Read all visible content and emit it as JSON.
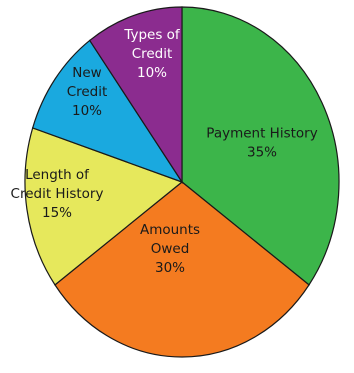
{
  "chart_data": {
    "type": "pie",
    "title": "",
    "slices": [
      {
        "label": "Payment History",
        "value": 35,
        "value_label": "35%",
        "color": "#3cb54a",
        "label_lines": [
          "Payment History",
          "35%"
        ]
      },
      {
        "label": "Amounts Owed",
        "value": 30,
        "value_label": "30%",
        "color": "#f47b20",
        "label_lines": [
          "Amounts",
          "Owed",
          "30%"
        ]
      },
      {
        "label": "Length of Credit History",
        "value": 15,
        "value_label": "15%",
        "color": "#e6e85c",
        "label_lines": [
          "Length of",
          "Credit History",
          "15%"
        ]
      },
      {
        "label": "New Credit",
        "value": 10,
        "value_label": "10%",
        "color": "#1aa9df",
        "label_lines": [
          "New",
          "Credit",
          "10%"
        ]
      },
      {
        "label": "Types of Credit",
        "value": 10,
        "value_label": "10%",
        "color": "#8b2c8f",
        "label_lines": [
          "Types of",
          "Credit",
          "10%"
        ]
      }
    ]
  }
}
